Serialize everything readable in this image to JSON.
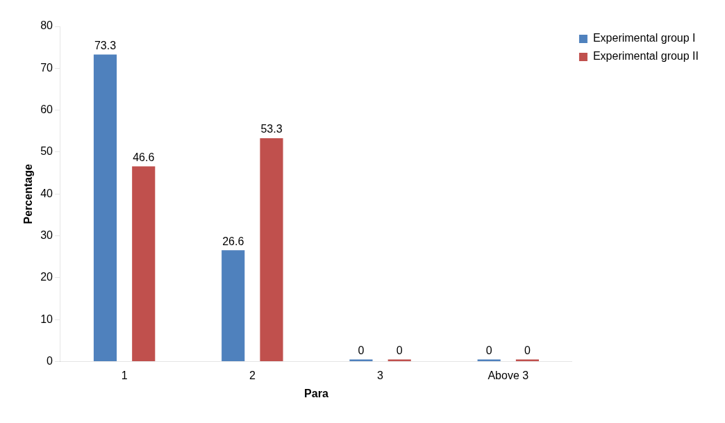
{
  "chart_data": {
    "type": "bar",
    "xlabel": "Para",
    "ylabel": "Percentage",
    "categories": [
      "1",
      "2",
      "3",
      "Above 3"
    ],
    "series": [
      {
        "name": "Experimental group I",
        "color": "#4f81bd",
        "values": [
          73.3,
          26.6,
          0,
          0
        ]
      },
      {
        "name": "Experimental group II",
        "color": "#c0504d",
        "values": [
          46.6,
          53.3,
          0,
          0
        ]
      }
    ],
    "ylim": [
      0,
      80
    ],
    "yticks": [
      0,
      10,
      20,
      30,
      40,
      50,
      60,
      70,
      80
    ],
    "grid": false,
    "legend": "top right",
    "data_labels": true
  }
}
